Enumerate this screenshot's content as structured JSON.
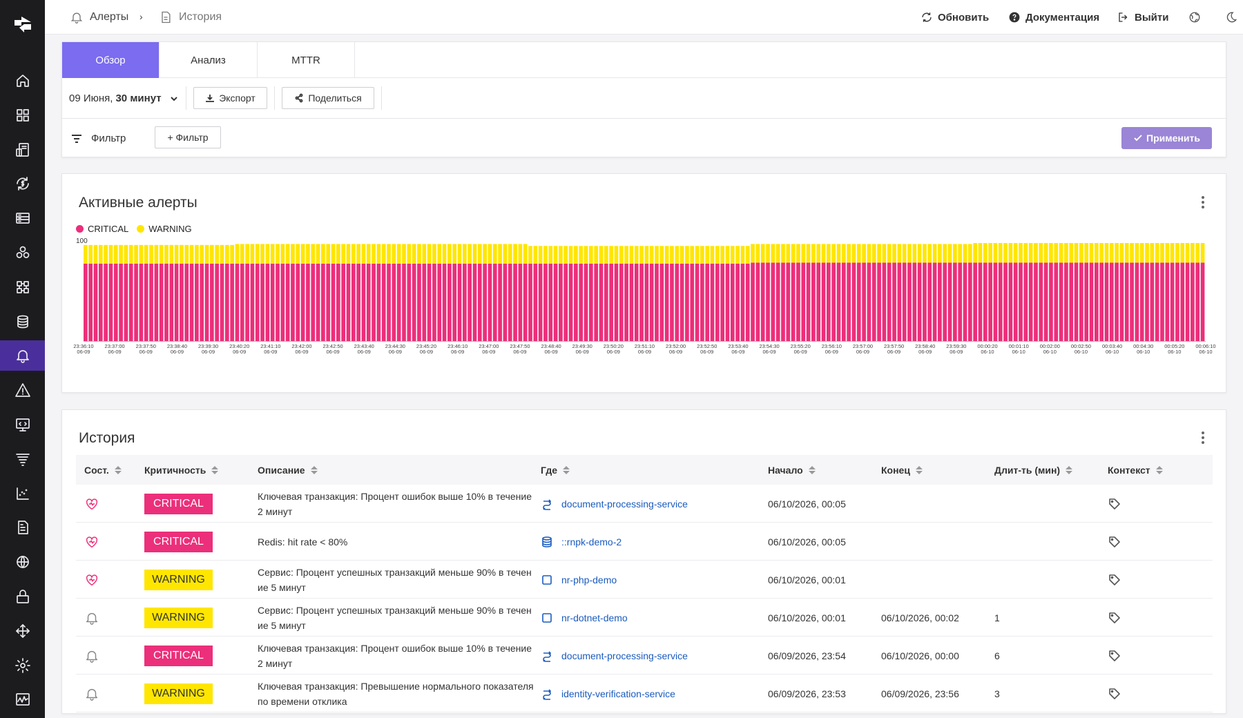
{
  "sidebar": {
    "items": [
      {
        "name": "home-icon"
      },
      {
        "name": "dashboard-grid-icon"
      },
      {
        "name": "devices-icon"
      },
      {
        "name": "billing-sync-icon"
      },
      {
        "name": "server-list-icon"
      },
      {
        "name": "services-hexagon-icon"
      },
      {
        "name": "apps-icon"
      },
      {
        "name": "database-icon"
      },
      {
        "name": "alerts-bell-icon",
        "active": true
      },
      {
        "name": "warning-triangle-icon"
      },
      {
        "name": "monitor-code-icon"
      },
      {
        "name": "logs-icon"
      },
      {
        "name": "metrics-chart-icon"
      },
      {
        "name": "reports-document-icon"
      },
      {
        "name": "network-globe-icon"
      },
      {
        "name": "security-lock-icon"
      },
      {
        "name": "integrations-arrows-icon"
      },
      {
        "name": "settings-gear-icon"
      },
      {
        "name": "activity-pulse-icon"
      }
    ]
  },
  "breadcrumb": {
    "alerts": "Алерты",
    "history": "История"
  },
  "top_actions": {
    "refresh": "Обновить",
    "docs": "Документация",
    "logout": "Выйти"
  },
  "tabs": [
    {
      "label": "Обзор",
      "active": true
    },
    {
      "label": "Анализ"
    },
    {
      "label": "MTTR"
    }
  ],
  "toolbar": {
    "date_prefix": "09 Июня,",
    "date_bold": "30 минут",
    "export": "Экспорт",
    "share": "Поделиться"
  },
  "filter": {
    "label": "Фильтр",
    "add": "+ Фильтр",
    "apply": "Применить"
  },
  "active_alerts": {
    "title": "Активные алерты",
    "legend": [
      {
        "name": "CRITICAL",
        "color": "#ec2f7a"
      },
      {
        "name": "WARNING",
        "color": "#ffe600"
      }
    ],
    "y_max_label": "100"
  },
  "chart_data": {
    "type": "bar",
    "stacked": true,
    "ylim": [
      0,
      100
    ],
    "x_ticks": [
      [
        "23:36:10",
        "06-09"
      ],
      [
        "23:37:00",
        "06-09"
      ],
      [
        "23:37:50",
        "06-09"
      ],
      [
        "23:38:40",
        "06-09"
      ],
      [
        "23:39:30",
        "06-09"
      ],
      [
        "23:40:20",
        "06-09"
      ],
      [
        "23:41:10",
        "06-09"
      ],
      [
        "23:42:00",
        "06-09"
      ],
      [
        "23:42:50",
        "06-09"
      ],
      [
        "23:43:40",
        "06-09"
      ],
      [
        "23:44:30",
        "06-09"
      ],
      [
        "23:45:20",
        "06-09"
      ],
      [
        "23:46:10",
        "06-09"
      ],
      [
        "23:47:00",
        "06-09"
      ],
      [
        "23:47:50",
        "06-09"
      ],
      [
        "23:48:40",
        "06-09"
      ],
      [
        "23:49:30",
        "06-09"
      ],
      [
        "23:50:20",
        "06-09"
      ],
      [
        "23:51:10",
        "06-09"
      ],
      [
        "23:52:00",
        "06-09"
      ],
      [
        "23:52:50",
        "06-09"
      ],
      [
        "23:53:40",
        "06-09"
      ],
      [
        "23:54:30",
        "06-09"
      ],
      [
        "23:55:20",
        "06-09"
      ],
      [
        "23:56:10",
        "06-09"
      ],
      [
        "23:57:00",
        "06-09"
      ],
      [
        "23:57:50",
        "06-09"
      ],
      [
        "23:58:40",
        "06-09"
      ],
      [
        "23:59:30",
        "06-09"
      ],
      [
        "00:00:20",
        "06-10"
      ],
      [
        "00:01:10",
        "06-10"
      ],
      [
        "00:02:00",
        "06-10"
      ],
      [
        "00:02:50",
        "06-10"
      ],
      [
        "00:03:40",
        "06-10"
      ],
      [
        "00:04:30",
        "06-10"
      ],
      [
        "00:05:20",
        "06-10"
      ],
      [
        "00:06:10",
        "06-10"
      ]
    ],
    "bar_count": 222,
    "segments": [
      {
        "bars": 30,
        "critical": 79,
        "warning": 19
      },
      {
        "bars": 58,
        "critical": 79,
        "warning": 20
      },
      {
        "bars": 44,
        "critical": 79,
        "warning": 18
      },
      {
        "bars": 44,
        "critical": 80,
        "warning": 19
      },
      {
        "bars": 46,
        "critical": 80,
        "warning": 20
      }
    ],
    "series": [
      {
        "name": "CRITICAL",
        "color": "#ec2f7a"
      },
      {
        "name": "WARNING",
        "color": "#ffe600"
      }
    ]
  },
  "history": {
    "title": "История",
    "columns": [
      "Сост.",
      "Критичность",
      "Описание",
      "Где",
      "Начало",
      "Конец",
      "Длит-ть (мин)",
      "Контекст"
    ],
    "rows": [
      {
        "state": "active",
        "severity": "CRITICAL",
        "description": "Ключевая транзакция: Процент ошибок выше 10% в течение 2 минут",
        "where_icon": "transaction-icon",
        "where": "document-processing-service",
        "start": "06/10/2026, 00:05",
        "end": "",
        "duration": ""
      },
      {
        "state": "active",
        "severity": "CRITICAL",
        "description": "Redis: hit rate < 80%",
        "where_icon": "database-icon",
        "where": "::rnpk-demo-2",
        "start": "06/10/2026, 00:05",
        "end": "",
        "duration": ""
      },
      {
        "state": "active",
        "severity": "WARNING",
        "description": "Сервис: Процент успешных транзакций меньше 90% в течение 5 минут",
        "where_icon": "service-square-icon",
        "where": "nr-php-demo",
        "start": "06/10/2026, 00:01",
        "end": "",
        "duration": ""
      },
      {
        "state": "closed",
        "severity": "WARNING",
        "description": "Сервис: Процент успешных транзакций меньше 90% в течение 5 минут",
        "where_icon": "service-square-icon",
        "where": "nr-dotnet-demo",
        "start": "06/10/2026, 00:01",
        "end": "06/10/2026, 00:02",
        "duration": "1"
      },
      {
        "state": "closed",
        "severity": "CRITICAL",
        "description": "Ключевая транзакция: Процент ошибок выше 10% в течение 2 минут",
        "where_icon": "transaction-icon",
        "where": "document-processing-service",
        "start": "06/09/2026, 23:54",
        "end": "06/10/2026, 00:00",
        "duration": "6"
      },
      {
        "state": "closed",
        "severity": "WARNING",
        "description": "Ключевая транзакция: Превышение нормального показателя по времени отклика",
        "where_icon": "transaction-icon",
        "where": "identity-verification-service",
        "start": "06/09/2026, 23:53",
        "end": "06/09/2026, 23:56",
        "duration": "3"
      }
    ]
  }
}
